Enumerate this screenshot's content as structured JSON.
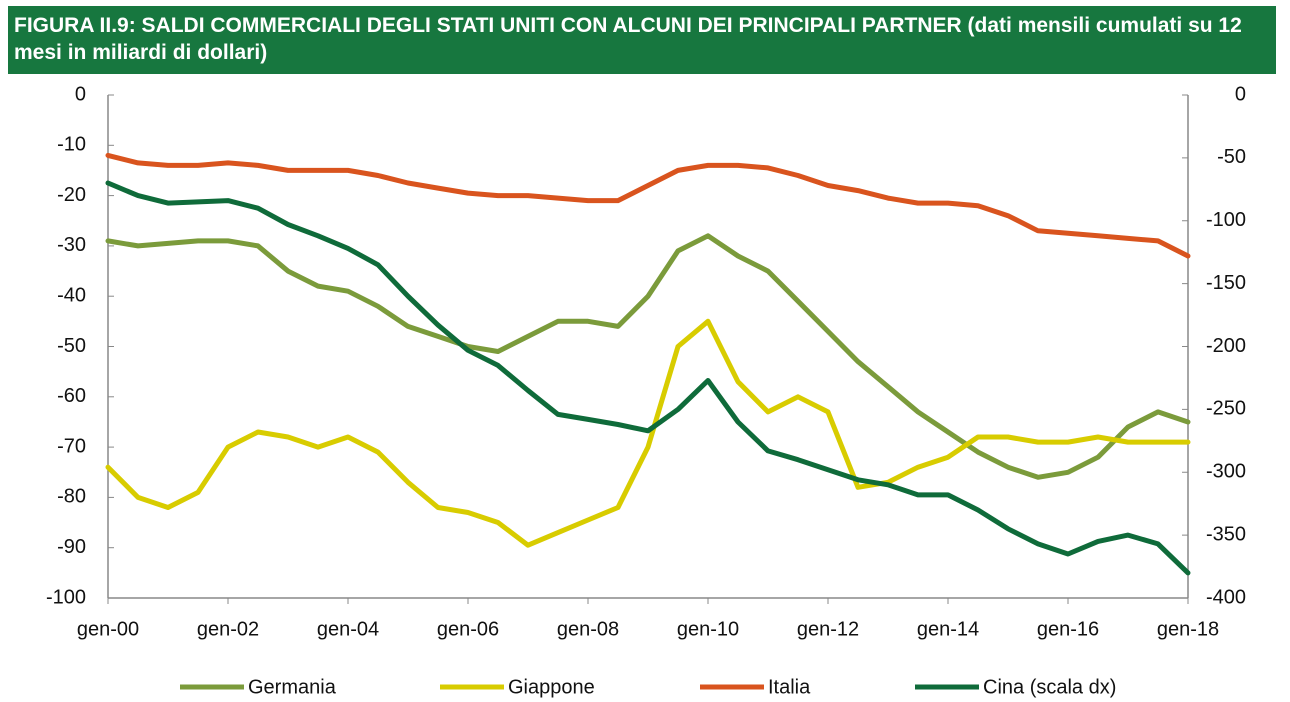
{
  "chart_data": {
    "type": "line",
    "title": "FIGURA II.9: SALDI COMMERCIALI DEGLI STATI UNITI CON ALCUNI DEI PRINCIPALI PARTNER (dati mensili cumulati su 12 mesi in miliardi di dollari)",
    "x": [
      "gen-00",
      "lug-00",
      "gen-01",
      "lug-01",
      "gen-02",
      "lug-02",
      "gen-03",
      "lug-03",
      "gen-04",
      "lug-04",
      "gen-05",
      "lug-05",
      "gen-06",
      "lug-06",
      "gen-07",
      "lug-07",
      "gen-08",
      "lug-08",
      "gen-09",
      "lug-09",
      "gen-10",
      "lug-10",
      "gen-11",
      "lug-11",
      "gen-12",
      "lug-12",
      "gen-13",
      "lug-13",
      "gen-14",
      "lug-14",
      "gen-15",
      "lug-15",
      "gen-16",
      "lug-16",
      "gen-17",
      "lug-17",
      "gen-18"
    ],
    "xticks": [
      "gen-00",
      "gen-02",
      "gen-04",
      "gen-06",
      "gen-08",
      "gen-10",
      "gen-12",
      "gen-14",
      "gen-16",
      "gen-18"
    ],
    "ylim": [
      -100,
      0
    ],
    "yticks": [
      0,
      -10,
      -20,
      -30,
      -40,
      -50,
      -60,
      -70,
      -80,
      -90,
      -100
    ],
    "y2lim": [
      -400,
      0
    ],
    "y2ticks": [
      0,
      -50,
      -100,
      -150,
      -200,
      -250,
      -300,
      -350,
      -400
    ],
    "series": [
      {
        "name": "Germania",
        "color": "#7b9b3b",
        "values": [
          -29,
          -30,
          -29.5,
          -29,
          -29,
          -30,
          -35,
          -38,
          -39,
          -42,
          -46,
          -48,
          -50,
          -51,
          -48,
          -45,
          -45,
          -46,
          -40,
          -31,
          -28,
          -32,
          -35,
          -41,
          -47,
          -53,
          -58,
          -63,
          -67,
          -71,
          -74,
          -76,
          -75,
          -72,
          -66,
          -63,
          -65
        ]
      },
      {
        "name": "Giappone",
        "color": "#d8cc00",
        "values": [
          -74,
          -80,
          -82,
          -79,
          -70,
          -67,
          -68,
          -70,
          -68,
          -71,
          -77,
          -82,
          -83,
          -85,
          -89.5,
          -87,
          -84.5,
          -82,
          -70,
          -50,
          -45,
          -57,
          -63,
          -60,
          -63,
          -78,
          -77,
          -74,
          -72,
          -68,
          -68,
          -69,
          -69,
          -68,
          -69,
          -69,
          -69
        ]
      },
      {
        "name": "Italia",
        "color": "#d9541e",
        "values": [
          -12,
          -13.5,
          -14,
          -14,
          -13.5,
          -14,
          -15,
          -15,
          -15,
          -16,
          -17.5,
          -18.5,
          -19.5,
          -20,
          -20,
          -20.5,
          -21,
          -21,
          -18,
          -15,
          -14,
          -14,
          -14.5,
          -16,
          -18,
          -19,
          -20.5,
          -21.5,
          -21.5,
          -22,
          -24,
          -27,
          -27.5,
          -28,
          -28.5,
          -29,
          -32
        ]
      },
      {
        "name": "Cina (scala dx)",
        "color": "#0f6b3a",
        "axis": "y2",
        "values": [
          -70,
          -80,
          -86,
          -85,
          -84,
          -90,
          -103,
          -112,
          -122,
          -135,
          -160,
          -183,
          -203,
          -215,
          -235,
          -254,
          -258,
          -262,
          -267,
          -250,
          -227,
          -260,
          -283,
          -290,
          -298,
          -306,
          -310,
          -318,
          -318,
          -330,
          -345,
          -357,
          -365,
          -355,
          -350,
          -357,
          -380
        ]
      }
    ]
  }
}
